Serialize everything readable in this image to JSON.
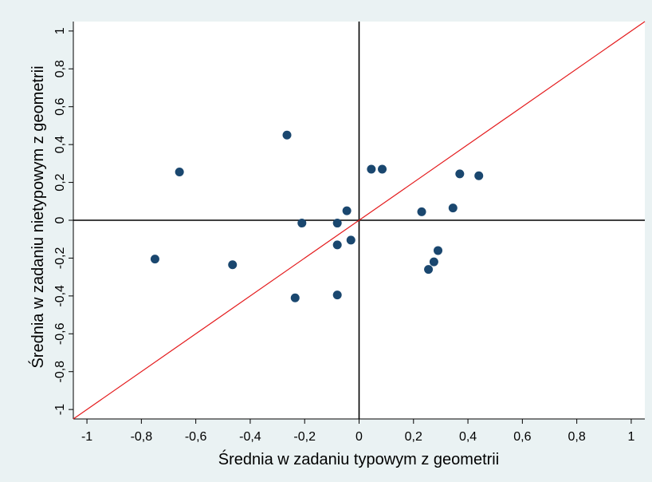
{
  "chart_data": {
    "type": "scatter",
    "title": "",
    "xlabel": "Średnia w zadaniu typowym z geometrii",
    "ylabel": "Średnia w zadaniu nietypowym z geometrii",
    "xlim": [
      -1.05,
      1.05
    ],
    "ylim": [
      -1.05,
      1.05
    ],
    "xticks": [
      -1,
      -0.8,
      -0.6,
      -0.4,
      -0.2,
      0,
      0.2,
      0.4,
      0.6,
      0.8,
      1
    ],
    "yticks": [
      -1,
      -0.8,
      -0.6,
      -0.4,
      -0.2,
      0,
      0.2,
      0.4,
      0.6,
      0.8,
      1
    ],
    "xtick_labels": [
      "-1",
      "-0,8",
      "-0,6",
      "-0,4",
      "-0,2",
      "0",
      "0,2",
      "0,4",
      "0,6",
      "0,8",
      "1"
    ],
    "ytick_labels": [
      "-1",
      "-0,8",
      "-0,6",
      "-0,4",
      "-0,2",
      "0",
      "0,2",
      "0,4",
      "0,6",
      "0,8",
      "1"
    ],
    "grid": false,
    "reference_lines": {
      "x0": true,
      "y0": true,
      "diagonal": true
    },
    "colors": {
      "background": "#eaf2f3",
      "plot_bg": "#ffffff",
      "marker": "#1a476f",
      "diagonal": "#e41a1c",
      "axes": "#000000"
    },
    "points": [
      {
        "x": -0.75,
        "y": -0.205
      },
      {
        "x": -0.66,
        "y": 0.255
      },
      {
        "x": -0.465,
        "y": -0.235
      },
      {
        "x": -0.265,
        "y": 0.45
      },
      {
        "x": -0.235,
        "y": -0.41
      },
      {
        "x": -0.21,
        "y": -0.015
      },
      {
        "x": -0.08,
        "y": -0.015
      },
      {
        "x": -0.08,
        "y": -0.13
      },
      {
        "x": -0.08,
        "y": -0.395
      },
      {
        "x": -0.045,
        "y": 0.05
      },
      {
        "x": -0.03,
        "y": -0.105
      },
      {
        "x": 0.045,
        "y": 0.27
      },
      {
        "x": 0.085,
        "y": 0.27
      },
      {
        "x": 0.23,
        "y": 0.045
      },
      {
        "x": 0.255,
        "y": -0.26
      },
      {
        "x": 0.275,
        "y": -0.22
      },
      {
        "x": 0.29,
        "y": -0.16
      },
      {
        "x": 0.345,
        "y": 0.065
      },
      {
        "x": 0.37,
        "y": 0.245
      },
      {
        "x": 0.44,
        "y": 0.235
      }
    ]
  }
}
